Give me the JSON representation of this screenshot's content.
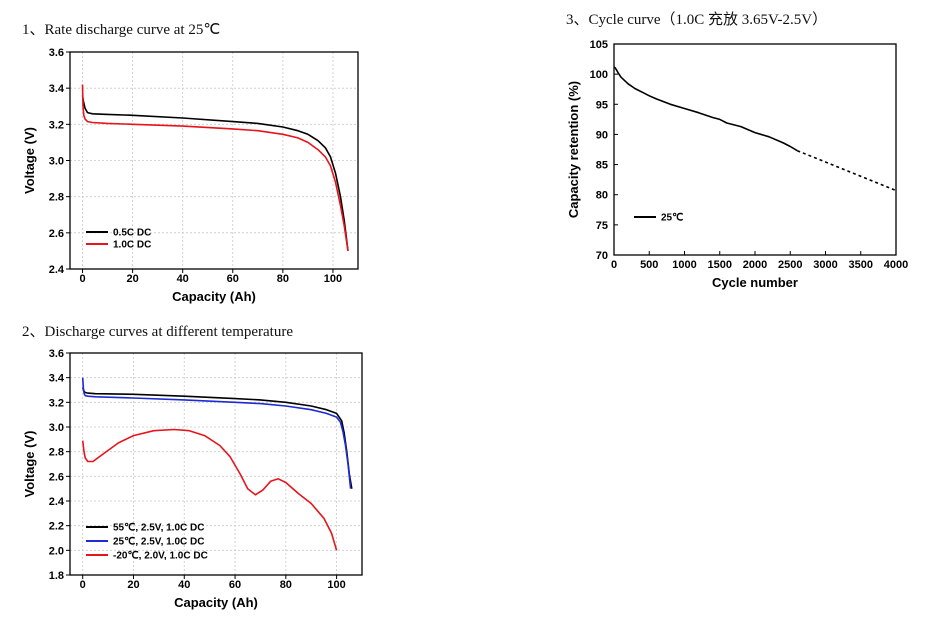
{
  "headings": {
    "chart1": "1、Rate discharge curve at 25℃",
    "chart2": "2、Discharge curves at different temperature",
    "chart3": "3、Cycle curve（1.0C 充放 3.65V-2.5V）"
  },
  "chart_data": [
    {
      "type": "line",
      "title": "1、Rate discharge curve at 25℃",
      "xlabel": "Capacity (Ah)",
      "ylabel": "Voltage (V)",
      "xlim": [
        -5,
        110
      ],
      "ylim": [
        2.4,
        3.6
      ],
      "xticks": [
        0,
        20,
        40,
        60,
        80,
        100
      ],
      "yticks": [
        2.4,
        2.6,
        2.8,
        3.0,
        3.2,
        3.4,
        3.6
      ],
      "ytick_labels": [
        "2.4",
        "2.6",
        "2.8",
        "3.0",
        "3.2",
        "3.4",
        "3.6"
      ],
      "grid": true,
      "legend_position": "bottom-left",
      "series": [
        {
          "name": "0.5C DC",
          "color": "#000000",
          "x": [
            0,
            0.3,
            1,
            2,
            4,
            10,
            20,
            40,
            60,
            70,
            80,
            86,
            90,
            94,
            97,
            99,
            101,
            103,
            104.5,
            106
          ],
          "y": [
            3.36,
            3.33,
            3.29,
            3.265,
            3.258,
            3.255,
            3.25,
            3.235,
            3.215,
            3.205,
            3.185,
            3.165,
            3.145,
            3.11,
            3.07,
            3.02,
            2.93,
            2.8,
            2.67,
            2.5
          ]
        },
        {
          "name": "1.0C DC",
          "color": "#e8141b",
          "x": [
            0,
            0.2,
            0.5,
            1,
            2,
            4,
            10,
            20,
            40,
            60,
            70,
            80,
            86,
            90,
            94,
            97,
            99,
            101,
            103,
            104.5,
            106
          ],
          "y": [
            3.42,
            3.3,
            3.25,
            3.23,
            3.215,
            3.21,
            3.205,
            3.2,
            3.19,
            3.175,
            3.165,
            3.145,
            3.125,
            3.1,
            3.06,
            3.02,
            2.97,
            2.88,
            2.75,
            2.64,
            2.5
          ]
        }
      ]
    },
    {
      "type": "line",
      "title": "2、Discharge curves at different temperature",
      "xlabel": "Capacity (Ah)",
      "ylabel": "Voltage (V)",
      "xlim": [
        -5,
        110
      ],
      "ylim": [
        1.8,
        3.6
      ],
      "xticks": [
        0,
        20,
        40,
        60,
        80,
        100
      ],
      "yticks": [
        1.8,
        2.0,
        2.2,
        2.4,
        2.6,
        2.8,
        3.0,
        3.2,
        3.4,
        3.6
      ],
      "ytick_labels": [
        "1.8",
        "2.0",
        "2.2",
        "2.4",
        "2.6",
        "2.8",
        "3.0",
        "3.2",
        "3.4",
        "3.6"
      ],
      "grid": true,
      "legend_position": "bottom-left",
      "series": [
        {
          "name": "55℃, 2.5V, 1.0C DC",
          "color": "#000000",
          "x": [
            0,
            0.5,
            1,
            2,
            5,
            20,
            40,
            60,
            70,
            80,
            90,
            96,
            100,
            102,
            103,
            104,
            105,
            106
          ],
          "y": [
            3.32,
            3.29,
            3.28,
            3.275,
            3.27,
            3.265,
            3.25,
            3.23,
            3.22,
            3.2,
            3.17,
            3.14,
            3.11,
            3.05,
            2.95,
            2.8,
            2.62,
            2.5
          ]
        },
        {
          "name": "25℃, 2.5V, 1.0C DC",
          "color": "#1c2bd6",
          "x": [
            0,
            0.3,
            0.6,
            1,
            2,
            5,
            20,
            40,
            60,
            70,
            80,
            90,
            96,
            100,
            101.5,
            102.5,
            103.5,
            104.5,
            105.5
          ],
          "y": [
            3.4,
            3.3,
            3.27,
            3.255,
            3.25,
            3.245,
            3.235,
            3.22,
            3.2,
            3.19,
            3.17,
            3.14,
            3.11,
            3.08,
            3.04,
            2.96,
            2.85,
            2.7,
            2.5
          ]
        },
        {
          "name": "-20℃, 2.0V, 1.0C DC",
          "color": "#e8141b",
          "x": [
            0,
            0.5,
            1,
            2,
            4,
            8,
            14,
            20,
            28,
            36,
            42,
            48,
            54,
            58,
            62,
            65,
            68,
            71,
            74,
            77,
            80,
            85,
            90,
            95,
            98,
            100
          ],
          "y": [
            2.89,
            2.8,
            2.75,
            2.72,
            2.72,
            2.78,
            2.87,
            2.93,
            2.97,
            2.98,
            2.97,
            2.93,
            2.85,
            2.76,
            2.62,
            2.5,
            2.45,
            2.49,
            2.56,
            2.58,
            2.55,
            2.46,
            2.38,
            2.26,
            2.14,
            2.0
          ]
        }
      ]
    },
    {
      "type": "line",
      "title": "3、Cycle curve（1.0C 充放 3.65V-2.5V）",
      "xlabel": "Cycle number",
      "ylabel": "Capacity retention (%)",
      "xlim": [
        0,
        4000
      ],
      "ylim": [
        70,
        105
      ],
      "xticks": [
        0,
        500,
        1000,
        1500,
        2000,
        2500,
        3000,
        3500,
        4000
      ],
      "yticks": [
        70,
        75,
        80,
        85,
        90,
        95,
        100,
        105
      ],
      "grid": false,
      "legend_position": "bottom-left",
      "series": [
        {
          "name": "25℃",
          "color": "#000000",
          "x": [
            0,
            20,
            60,
            100,
            200,
            300,
            400,
            500,
            600,
            800,
            1000,
            1200,
            1400,
            1500,
            1600,
            1800,
            2000,
            2200,
            2400,
            2500,
            2600
          ],
          "y": [
            101.2,
            101.0,
            100.2,
            99.5,
            98.4,
            97.6,
            97.0,
            96.4,
            95.9,
            95.0,
            94.3,
            93.6,
            92.8,
            92.5,
            91.9,
            91.3,
            90.3,
            89.6,
            88.6,
            88.0,
            87.3
          ]
        },
        {
          "name": "",
          "style": "dashed",
          "color": "#000000",
          "x": [
            2600,
            4000
          ],
          "y": [
            87.3,
            80.7
          ]
        }
      ]
    }
  ]
}
